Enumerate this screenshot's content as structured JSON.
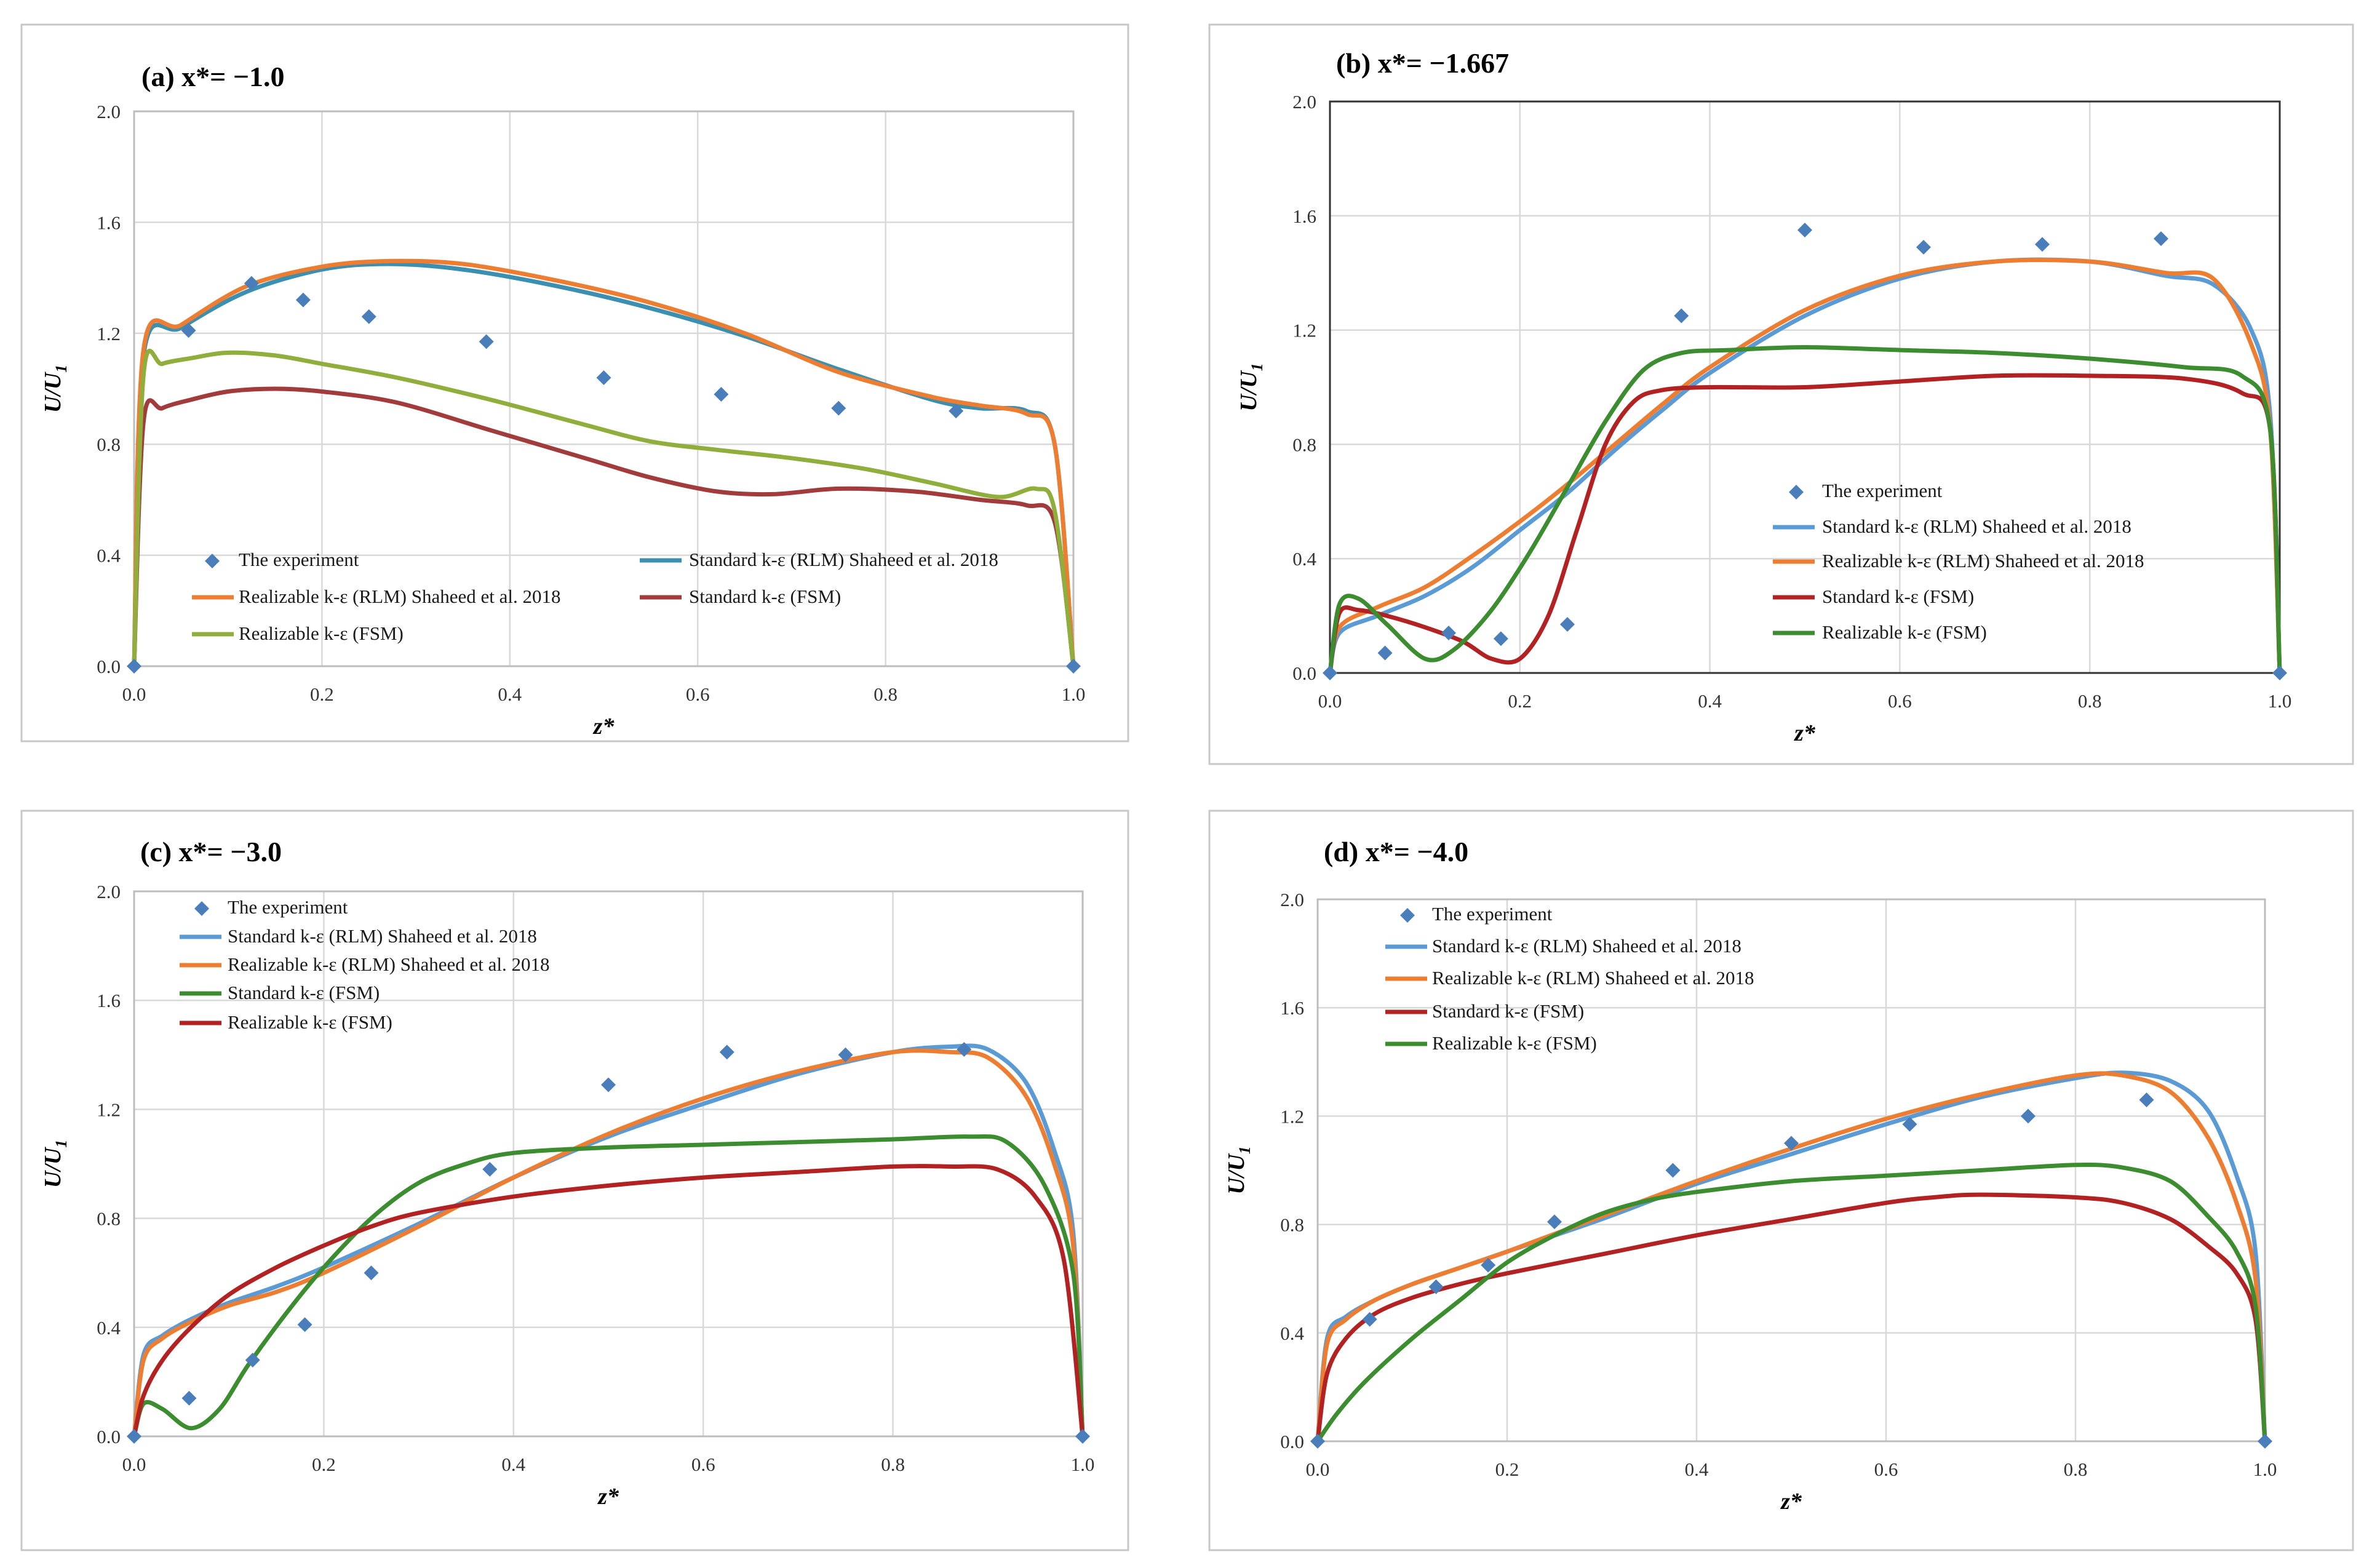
{
  "colors": {
    "experiment": "#4a7ebb",
    "std_rlm_a": "#3b8fb0",
    "std_rlm": "#5b9bd5",
    "real_rlm": "#ed7d31",
    "green_a": "#8fae3c",
    "green": "#3c8d2f",
    "red": "#b22222",
    "red_a": "#a23b3b"
  },
  "chart_data": [
    {
      "id": "a",
      "type": "line",
      "title": "(a) x*= −1.0",
      "xlabel": "z*",
      "ylabel": "U/U",
      "ylabel_sub": "1",
      "xlim": [
        0,
        1
      ],
      "ylim": [
        0,
        2
      ],
      "xticks": [
        "0.0",
        "0.2",
        "0.4",
        "0.6",
        "0.8",
        "1.0"
      ],
      "yticks": [
        "0.0",
        "0.4",
        "0.8",
        "1.2",
        "1.6",
        "2.0"
      ],
      "legend": [
        "The experiment",
        "Standard k-ε (RLM) Shaheed et al. 2018",
        "Realizable k-ε  (RLM) Shaheed et al. 2018",
        "Standard k-ε (FSM)",
        "Realizable k-ε (FSM)"
      ],
      "experiment": {
        "x": [
          0,
          0.058,
          0.125,
          0.18,
          0.25,
          0.375,
          0.5,
          0.625,
          0.75,
          0.875,
          1.0
        ],
        "y": [
          0,
          1.21,
          1.38,
          1.32,
          1.26,
          1.17,
          1.04,
          0.98,
          0.93,
          0.92,
          0
        ]
      },
      "series": [
        {
          "key": "std_rlm",
          "x": [
            0,
            0.01,
            0.05,
            0.12,
            0.2,
            0.27,
            0.35,
            0.45,
            0.55,
            0.65,
            0.75,
            0.85,
            0.9,
            0.95,
            0.98,
            1.0
          ],
          "y": [
            0,
            1.12,
            1.22,
            1.35,
            1.43,
            1.45,
            1.43,
            1.37,
            1.29,
            1.19,
            1.07,
            0.96,
            0.93,
            0.92,
            0.8,
            0
          ]
        },
        {
          "key": "real_rlm",
          "x": [
            0,
            0.01,
            0.05,
            0.12,
            0.2,
            0.27,
            0.35,
            0.45,
            0.55,
            0.65,
            0.75,
            0.85,
            0.9,
            0.95,
            0.98,
            1.0
          ],
          "y": [
            0,
            1.14,
            1.23,
            1.37,
            1.44,
            1.46,
            1.45,
            1.39,
            1.31,
            1.2,
            1.06,
            0.97,
            0.94,
            0.91,
            0.8,
            0
          ]
        },
        {
          "key": "red",
          "x": [
            0,
            0.01,
            0.03,
            0.06,
            0.1,
            0.15,
            0.2,
            0.28,
            0.38,
            0.48,
            0.55,
            0.62,
            0.68,
            0.75,
            0.83,
            0.9,
            0.95,
            0.98,
            1.0
          ],
          "y": [
            0,
            0.88,
            0.93,
            0.96,
            0.99,
            1.0,
            0.99,
            0.95,
            0.85,
            0.75,
            0.68,
            0.63,
            0.62,
            0.64,
            0.63,
            0.6,
            0.58,
            0.52,
            0
          ]
        },
        {
          "key": "green",
          "x": [
            0,
            0.01,
            0.03,
            0.06,
            0.1,
            0.15,
            0.2,
            0.28,
            0.38,
            0.48,
            0.55,
            0.62,
            0.7,
            0.78,
            0.85,
            0.92,
            0.96,
            0.98,
            1.0
          ],
          "y": [
            0,
            1.05,
            1.09,
            1.11,
            1.13,
            1.12,
            1.09,
            1.04,
            0.96,
            0.87,
            0.81,
            0.78,
            0.75,
            0.71,
            0.66,
            0.61,
            0.64,
            0.56,
            0
          ]
        }
      ]
    },
    {
      "id": "b",
      "type": "line",
      "title": "(b) x*= −1.667",
      "xlabel": "z*",
      "ylabel": "U/U",
      "ylabel_sub": "1",
      "xlim": [
        0,
        1
      ],
      "ylim": [
        0,
        2
      ],
      "xticks": [
        "0.0",
        "0.2",
        "0.4",
        "0.6",
        "0.8",
        "1.0"
      ],
      "yticks": [
        "0.0",
        "0.4",
        "0.8",
        "1.2",
        "1.6",
        "2.0"
      ],
      "legend": [
        "The experiment",
        "Standard k-ε (RLM) Shaheed et al. 2018",
        "Realizable k-ε  (RLM) Shaheed et al. 2018",
        "Standard k-ε (FSM)",
        "Realizable k-ε (FSM)"
      ],
      "experiment": {
        "x": [
          0,
          0.058,
          0.125,
          0.18,
          0.25,
          0.37,
          0.5,
          0.625,
          0.75,
          0.875,
          1.0
        ],
        "y": [
          0,
          0.07,
          0.14,
          0.12,
          0.17,
          1.25,
          1.55,
          1.49,
          1.5,
          1.52,
          0
        ]
      },
      "series": [
        {
          "key": "std_rlm",
          "x": [
            0,
            0.01,
            0.05,
            0.1,
            0.15,
            0.2,
            0.25,
            0.3,
            0.35,
            0.4,
            0.5,
            0.6,
            0.7,
            0.8,
            0.88,
            0.93,
            0.97,
            0.99,
            1.0
          ],
          "y": [
            0,
            0.14,
            0.2,
            0.27,
            0.37,
            0.5,
            0.63,
            0.78,
            0.92,
            1.05,
            1.25,
            1.38,
            1.44,
            1.44,
            1.39,
            1.36,
            1.2,
            0.9,
            0
          ]
        },
        {
          "key": "real_rlm",
          "x": [
            0,
            0.01,
            0.05,
            0.1,
            0.15,
            0.2,
            0.25,
            0.3,
            0.35,
            0.4,
            0.5,
            0.6,
            0.7,
            0.8,
            0.88,
            0.93,
            0.97,
            0.99,
            1.0
          ],
          "y": [
            0,
            0.16,
            0.23,
            0.3,
            0.41,
            0.53,
            0.66,
            0.8,
            0.94,
            1.07,
            1.27,
            1.39,
            1.44,
            1.44,
            1.4,
            1.38,
            1.15,
            0.85,
            0
          ]
        },
        {
          "key": "red",
          "x": [
            0,
            0.01,
            0.03,
            0.06,
            0.1,
            0.14,
            0.17,
            0.2,
            0.23,
            0.26,
            0.29,
            0.32,
            0.35,
            0.4,
            0.5,
            0.6,
            0.7,
            0.8,
            0.9,
            0.96,
            0.99,
            1.0
          ],
          "y": [
            0,
            0.21,
            0.22,
            0.2,
            0.16,
            0.11,
            0.05,
            0.05,
            0.2,
            0.5,
            0.8,
            0.95,
            0.99,
            1.0,
            1.0,
            1.02,
            1.04,
            1.04,
            1.03,
            0.98,
            0.85,
            0
          ]
        },
        {
          "key": "green",
          "x": [
            0,
            0.01,
            0.03,
            0.06,
            0.1,
            0.13,
            0.17,
            0.21,
            0.25,
            0.29,
            0.33,
            0.37,
            0.42,
            0.5,
            0.6,
            0.7,
            0.8,
            0.9,
            0.96,
            0.99,
            1.0
          ],
          "y": [
            0,
            0.24,
            0.26,
            0.17,
            0.05,
            0.08,
            0.22,
            0.42,
            0.65,
            0.88,
            1.06,
            1.12,
            1.13,
            1.14,
            1.13,
            1.12,
            1.1,
            1.07,
            1.04,
            0.85,
            0
          ]
        }
      ]
    },
    {
      "id": "c",
      "type": "line",
      "title": "(c) x*= −3.0",
      "xlabel": "z*",
      "ylabel": "U/U",
      "ylabel_sub": "1",
      "xlim": [
        0,
        1
      ],
      "ylim": [
        0,
        2
      ],
      "xticks": [
        "0.0",
        "0.2",
        "0.4",
        "0.6",
        "0.8",
        "1.0"
      ],
      "yticks": [
        "0.0",
        "0.4",
        "0.8",
        "1.2",
        "1.6",
        "2.0"
      ],
      "legend": [
        "The experiment",
        "Standard k-ε (RLM) Shaheed et al. 2018",
        "Realizable k-ε  (RLM) Shaheed et al. 2018",
        "Standard k-ε (FSM)",
        "Realizable k-ε (FSM)"
      ],
      "experiment": {
        "x": [
          0,
          0.058,
          0.125,
          0.18,
          0.25,
          0.375,
          0.5,
          0.625,
          0.75,
          0.875,
          1.0
        ],
        "y": [
          0,
          0.14,
          0.28,
          0.41,
          0.6,
          0.98,
          1.29,
          1.41,
          1.4,
          1.42,
          0
        ]
      },
      "series": [
        {
          "key": "std_rlm",
          "x": [
            0,
            0.01,
            0.03,
            0.06,
            0.1,
            0.15,
            0.2,
            0.3,
            0.4,
            0.5,
            0.6,
            0.7,
            0.8,
            0.86,
            0.9,
            0.94,
            0.97,
            0.99,
            1.0
          ],
          "y": [
            0,
            0.3,
            0.37,
            0.43,
            0.49,
            0.55,
            0.62,
            0.78,
            0.95,
            1.1,
            1.22,
            1.33,
            1.41,
            1.43,
            1.42,
            1.3,
            1.05,
            0.75,
            0
          ]
        },
        {
          "key": "real_rlm",
          "x": [
            0,
            0.01,
            0.03,
            0.06,
            0.1,
            0.15,
            0.2,
            0.3,
            0.4,
            0.5,
            0.6,
            0.7,
            0.8,
            0.86,
            0.9,
            0.94,
            0.97,
            0.99,
            1.0
          ],
          "y": [
            0,
            0.28,
            0.36,
            0.42,
            0.48,
            0.53,
            0.6,
            0.77,
            0.95,
            1.11,
            1.24,
            1.34,
            1.41,
            1.41,
            1.39,
            1.25,
            1.0,
            0.7,
            0
          ]
        },
        {
          "key": "green",
          "x": [
            0,
            0.01,
            0.03,
            0.06,
            0.09,
            0.12,
            0.16,
            0.2,
            0.25,
            0.3,
            0.35,
            0.4,
            0.5,
            0.6,
            0.7,
            0.8,
            0.88,
            0.92,
            0.96,
            0.99,
            1.0
          ],
          "y": [
            0,
            0.12,
            0.1,
            0.03,
            0.1,
            0.26,
            0.45,
            0.62,
            0.8,
            0.93,
            1.0,
            1.04,
            1.06,
            1.07,
            1.08,
            1.09,
            1.1,
            1.08,
            0.92,
            0.6,
            0
          ]
        },
        {
          "key": "red",
          "x": [
            0,
            0.01,
            0.03,
            0.06,
            0.1,
            0.15,
            0.2,
            0.25,
            0.3,
            0.4,
            0.5,
            0.6,
            0.7,
            0.8,
            0.86,
            0.91,
            0.95,
            0.98,
            1.0
          ],
          "y": [
            0,
            0.15,
            0.28,
            0.4,
            0.52,
            0.62,
            0.7,
            0.77,
            0.82,
            0.88,
            0.92,
            0.95,
            0.97,
            0.99,
            0.99,
            0.98,
            0.88,
            0.65,
            0
          ]
        }
      ]
    },
    {
      "id": "d",
      "type": "line",
      "title": "(d) x*= −4.0",
      "xlabel": "z*",
      "ylabel": "U/U",
      "ylabel_sub": "1",
      "xlim": [
        0,
        1
      ],
      "ylim": [
        0,
        2
      ],
      "xticks": [
        "0.0",
        "0.2",
        "0.4",
        "0.6",
        "0.8",
        "1.0"
      ],
      "yticks": [
        "0.0",
        "0.4",
        "0.8",
        "1.2",
        "1.6",
        "2.0"
      ],
      "legend": [
        "The experiment",
        "Standard k-ε (RLM) Shaheed et al. 2018",
        "Realizable k-ε  (RLM) Shaheed et al. 2018",
        "Standard k-ε (FSM)",
        "Realizable k-ε (FSM)"
      ],
      "experiment": {
        "x": [
          0,
          0.055,
          0.125,
          0.18,
          0.25,
          0.375,
          0.5,
          0.625,
          0.75,
          0.875,
          1.0
        ],
        "y": [
          0,
          0.45,
          0.57,
          0.65,
          0.81,
          1.0,
          1.1,
          1.17,
          1.2,
          1.26,
          0
        ]
      },
      "series": [
        {
          "key": "std_rlm",
          "x": [
            0,
            0.01,
            0.03,
            0.06,
            0.1,
            0.15,
            0.2,
            0.3,
            0.4,
            0.5,
            0.6,
            0.7,
            0.8,
            0.85,
            0.9,
            0.94,
            0.97,
            0.99,
            1.0
          ],
          "y": [
            0,
            0.38,
            0.46,
            0.52,
            0.58,
            0.64,
            0.7,
            0.82,
            0.95,
            1.06,
            1.17,
            1.27,
            1.34,
            1.36,
            1.33,
            1.22,
            0.98,
            0.7,
            0
          ]
        },
        {
          "key": "real_rlm",
          "x": [
            0,
            0.01,
            0.03,
            0.06,
            0.1,
            0.15,
            0.2,
            0.3,
            0.4,
            0.5,
            0.6,
            0.7,
            0.8,
            0.85,
            0.9,
            0.94,
            0.97,
            0.99,
            1.0
          ],
          "y": [
            0,
            0.36,
            0.45,
            0.52,
            0.58,
            0.64,
            0.7,
            0.83,
            0.96,
            1.08,
            1.19,
            1.28,
            1.35,
            1.35,
            1.29,
            1.12,
            0.88,
            0.6,
            0
          ]
        },
        {
          "key": "red",
          "x": [
            0,
            0.01,
            0.03,
            0.06,
            0.1,
            0.15,
            0.2,
            0.3,
            0.4,
            0.5,
            0.6,
            0.65,
            0.7,
            0.8,
            0.85,
            0.9,
            0.94,
            0.97,
            0.99,
            1.0
          ],
          "y": [
            0,
            0.25,
            0.38,
            0.47,
            0.53,
            0.58,
            0.62,
            0.69,
            0.76,
            0.82,
            0.88,
            0.9,
            0.91,
            0.9,
            0.88,
            0.82,
            0.72,
            0.62,
            0.45,
            0
          ]
        },
        {
          "key": "green",
          "x": [
            0,
            0.02,
            0.05,
            0.1,
            0.15,
            0.2,
            0.25,
            0.3,
            0.35,
            0.4,
            0.5,
            0.6,
            0.7,
            0.8,
            0.85,
            0.9,
            0.94,
            0.97,
            0.99,
            1.0
          ],
          "y": [
            0,
            0.1,
            0.22,
            0.38,
            0.52,
            0.66,
            0.76,
            0.84,
            0.89,
            0.92,
            0.96,
            0.98,
            1.0,
            1.02,
            1.01,
            0.96,
            0.83,
            0.7,
            0.5,
            0
          ]
        }
      ]
    }
  ]
}
